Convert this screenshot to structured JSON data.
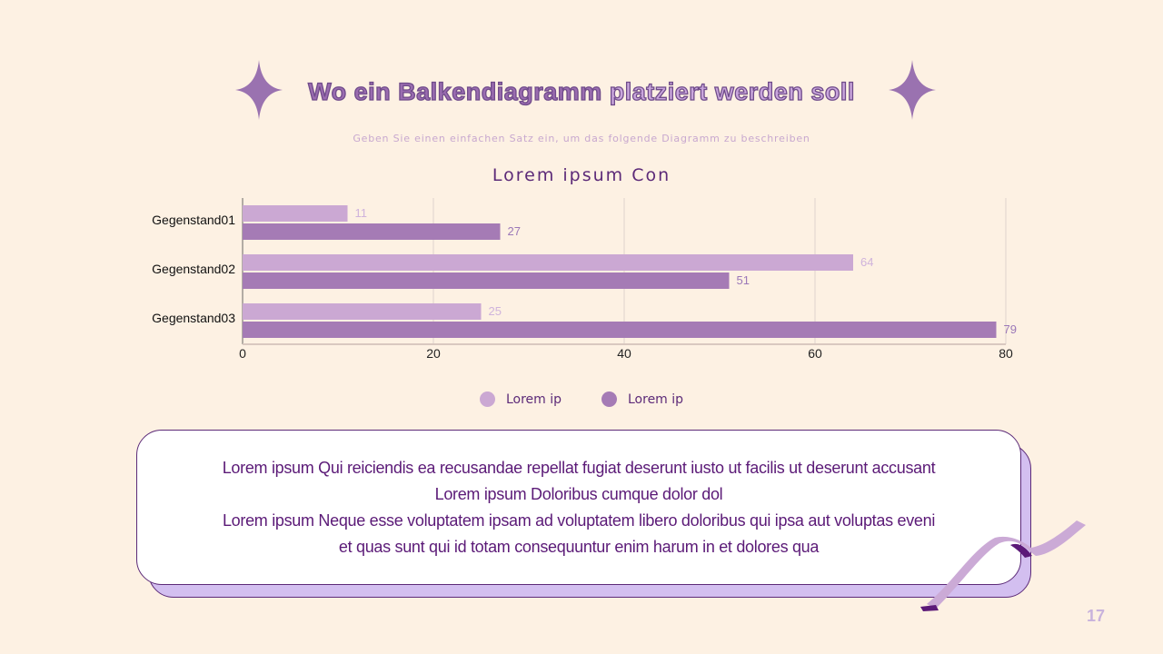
{
  "title": {
    "part1": "Wo ein Balkendiagramm",
    "part2": "platziert werden soll"
  },
  "subtitle": "Geben Sie einen einfachen Satz ein, um das folgende Diagramm zu beschreiben",
  "colors": {
    "series1": "#cba8d3",
    "series2": "#a57bb5",
    "background": "#fdf1e3",
    "text": "#5c2a78"
  },
  "chart_data": {
    "type": "bar",
    "orientation": "horizontal",
    "title": "Lorem ipsum Con",
    "categories": [
      "Gegenstand01",
      "Gegenstand02",
      "Gegenstand03"
    ],
    "series": [
      {
        "name": "Lorem ip",
        "values": [
          11,
          64,
          25
        ],
        "color": "#cba8d3"
      },
      {
        "name": "Lorem ip",
        "values": [
          27,
          51,
          79
        ],
        "color": "#a57bb5"
      }
    ],
    "xlim": [
      0,
      80
    ],
    "xticks": [
      "0",
      "20",
      "40",
      "60",
      "80"
    ],
    "grid": true,
    "legend": "bottom"
  },
  "card": {
    "lines": [
      "Lorem ipsum Qui reiciendis ea recusandae repellat fugiat deserunt iusto ut facilis ut deserunt accusant",
      "Lorem ipsum Doloribus cumque dolor dol",
      "Lorem ipsum Neque esse voluptatem ipsam ad voluptatem libero doloribus qui ipsa aut voluptas eveni",
      "et quas sunt qui id totam consequuntur enim harum in et dolores qua"
    ]
  },
  "page_number": "17"
}
